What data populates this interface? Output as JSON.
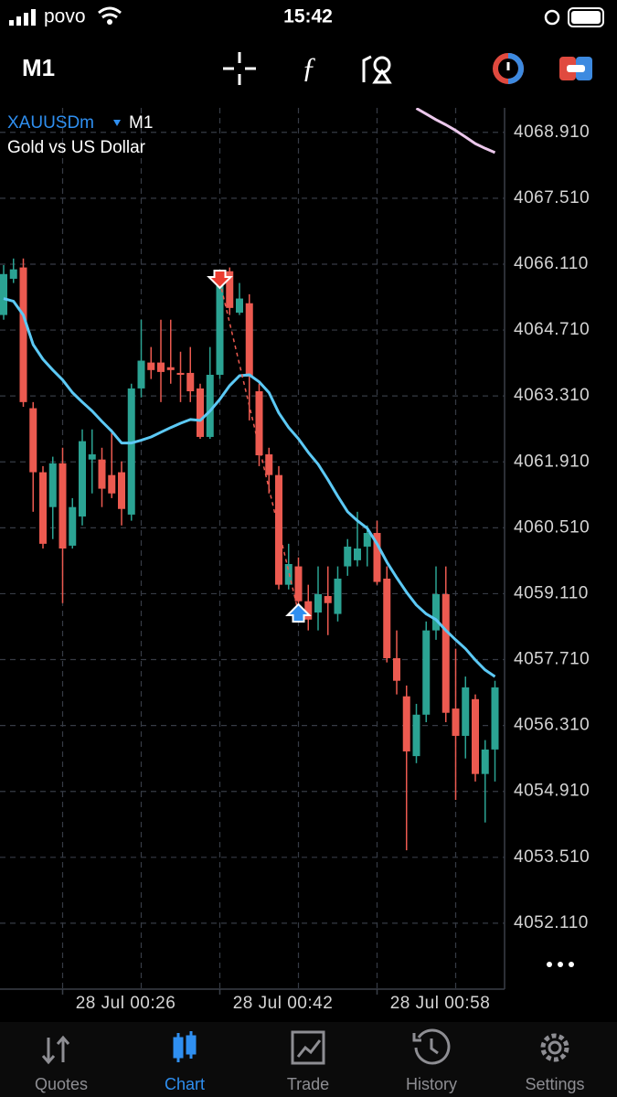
{
  "status_bar": {
    "carrier": "povo",
    "time": "15:42"
  },
  "toolbar": {
    "timeframe": "M1"
  },
  "chart_data": {
    "type": "candlestick",
    "symbol": "XAUUSDm",
    "timeframe": "M1",
    "subtitle": "Gold vs US Dollar",
    "categories": [
      null,
      null,
      null,
      null,
      null,
      null,
      "28 Jul 00:26",
      null,
      null,
      null,
      null,
      null,
      null,
      null,
      null,
      null,
      null,
      null,
      null,
      null,
      null,
      null,
      "28 Jul 00:42",
      null,
      null,
      null,
      null,
      null,
      null,
      null,
      null,
      null,
      null,
      null,
      null,
      null,
      null,
      null,
      "28 Jul 00:58",
      null,
      null,
      null,
      null,
      null,
      null,
      null,
      null,
      null,
      null,
      null,
      null
    ],
    "open": [
      4065.03,
      4065.8,
      4066.04,
      4063.05,
      4061.69,
      4060.95,
      4061.88,
      4060.13,
      4060.75,
      4061.96,
      4061.96,
      4061.63,
      4061.69,
      4060.79,
      4063.47,
      4064.02,
      4064.02,
      4063.92,
      4063.8,
      4063.8,
      4063.47,
      4062.44,
      4063.76,
      4065.96,
      4065.08,
      4065.28,
      4063.41,
      4062.07,
      4061.63,
      4059.3,
      4059.69,
      4058.95,
      4058.71,
      4059.06,
      4058.68,
      4059.69,
      4059.82,
      4060.11,
      4060.4,
      4059.43,
      4057.74,
      4056.93,
      4055.66,
      4056.54,
      4058.33,
      4059.1,
      4056.67,
      4056.09,
      4056.87,
      4055.28,
      4055.8
    ],
    "high": [
      4066.09,
      4066.23,
      4066.23,
      4063.18,
      4061.82,
      4062.02,
      4062.21,
      4061.14,
      4062.6,
      4062.6,
      4062.21,
      4062.6,
      4061.92,
      4063.57,
      4064.93,
      4064.35,
      4064.93,
      4064.93,
      4064.25,
      4064.35,
      4063.57,
      4064.35,
      4065.8,
      4066.04,
      4065.71,
      4065.47,
      4063.57,
      4062.21,
      4061.82,
      4060.17,
      4059.88,
      4059.3,
      4059.69,
      4059.69,
      4059.69,
      4060.27,
      4060.85,
      4060.56,
      4060.66,
      4059.69,
      4058.33,
      4057.16,
      4056.77,
      4058.52,
      4059.69,
      4059.69,
      4057.94,
      4057.35,
      4056.97,
      4056.0,
      4057.26
    ],
    "low": [
      4064.93,
      4065.71,
      4063.08,
      4060.85,
      4060.07,
      4060.27,
      4058.91,
      4060.07,
      4060.56,
      4061.24,
      4060.95,
      4061.14,
      4060.56,
      4060.66,
      4063.28,
      4063.67,
      4063.18,
      4063.57,
      4063.18,
      4063.18,
      4062.4,
      4062.4,
      4063.67,
      4065.03,
      4065.03,
      4062.79,
      4061.82,
      4061.24,
      4059.2,
      4059.2,
      4058.81,
      4058.33,
      4058.33,
      4058.23,
      4058.52,
      4059.49,
      4059.69,
      4059.69,
      4059.3,
      4057.65,
      4056.97,
      4053.66,
      4055.51,
      4056.38,
      4058.13,
      4056.38,
      4054.73,
      4055.61,
      4055.12,
      4054.25,
      4055.12
    ],
    "close": [
      4065.9,
      4066.0,
      4063.18,
      4061.69,
      4060.17,
      4061.88,
      4060.07,
      4060.95,
      4062.35,
      4062.07,
      4061.34,
      4061.24,
      4060.91,
      4063.47,
      4064.06,
      4063.86,
      4063.82,
      4063.86,
      4063.76,
      4063.41,
      4062.44,
      4063.76,
      4065.71,
      4065.18,
      4065.38,
      4063.72,
      4062.05,
      4061.63,
      4059.3,
      4059.74,
      4058.95,
      4058.56,
      4059.1,
      4058.91,
      4059.43,
      4060.11,
      4060.07,
      4060.4,
      4059.36,
      4057.74,
      4057.26,
      4055.76,
      4056.54,
      4058.33,
      4059.1,
      4056.58,
      4056.09,
      4057.12,
      4055.28,
      4055.8,
      4057.12
    ],
    "up_color": "#2ba393",
    "down_color": "#ec5a50",
    "moving_averages": [
      {
        "color": "#5cc9f5",
        "values": [
          4065.38,
          4065.32,
          4065.03,
          4064.4,
          4064.09,
          4063.86,
          4063.65,
          4063.38,
          4063.18,
          4062.99,
          4062.77,
          4062.56,
          4062.31,
          4062.31,
          4062.37,
          4062.44,
          4062.54,
          4062.64,
          4062.73,
          4062.81,
          4062.79,
          4062.99,
          4063.24,
          4063.53,
          4063.74,
          4063.76,
          4063.61,
          4063.38,
          4062.95,
          4062.64,
          4062.4,
          4062.11,
          4061.86,
          4061.53,
          4061.18,
          4060.85,
          4060.66,
          4060.5,
          4060.17,
          4059.78,
          4059.45,
          4059.14,
          4058.87,
          4058.68,
          4058.56,
          4058.33,
          4058.13,
          4057.94,
          4057.7,
          4057.49,
          4057.35
        ]
      },
      {
        "color": "#ecc8ec",
        "values": [
          null,
          null,
          null,
          null,
          null,
          null,
          null,
          null,
          null,
          null,
          null,
          null,
          null,
          null,
          null,
          null,
          null,
          null,
          null,
          null,
          null,
          null,
          null,
          null,
          null,
          null,
          null,
          null,
          null,
          null,
          null,
          null,
          null,
          null,
          null,
          null,
          null,
          null,
          null,
          null,
          null,
          null,
          4069.42,
          4069.3,
          4069.18,
          4069.07,
          4068.95,
          4068.81,
          4068.67,
          4068.57,
          4068.48
        ]
      }
    ],
    "trade": {
      "open_index": 22,
      "open_price": 4065.74,
      "close_index": 30,
      "close_price": 4058.71
    },
    "ylim": [
      4050.71,
      4069.43
    ],
    "yticks": [
      {
        "value": 4068.91,
        "label": "4068.910"
      },
      {
        "value": 4067.51,
        "label": "4067.510"
      },
      {
        "value": 4066.11,
        "label": "4066.110"
      },
      {
        "value": 4064.71,
        "label": "4064.710"
      },
      {
        "value": 4063.31,
        "label": "4063.310"
      },
      {
        "value": 4061.91,
        "label": "4061.910"
      },
      {
        "value": 4060.51,
        "label": "4060.510"
      },
      {
        "value": 4059.11,
        "label": "4059.110"
      },
      {
        "value": 4057.71,
        "label": "4057.710"
      },
      {
        "value": 4056.31,
        "label": "4056.310"
      },
      {
        "value": 4054.91,
        "label": "4054.910"
      },
      {
        "value": 4053.51,
        "label": "4053.510"
      },
      {
        "value": 4052.11,
        "label": "4052.110"
      }
    ],
    "grid": true
  },
  "tabs": {
    "items": [
      "Quotes",
      "Chart",
      "Trade",
      "History",
      "Settings"
    ],
    "active": 1
  }
}
